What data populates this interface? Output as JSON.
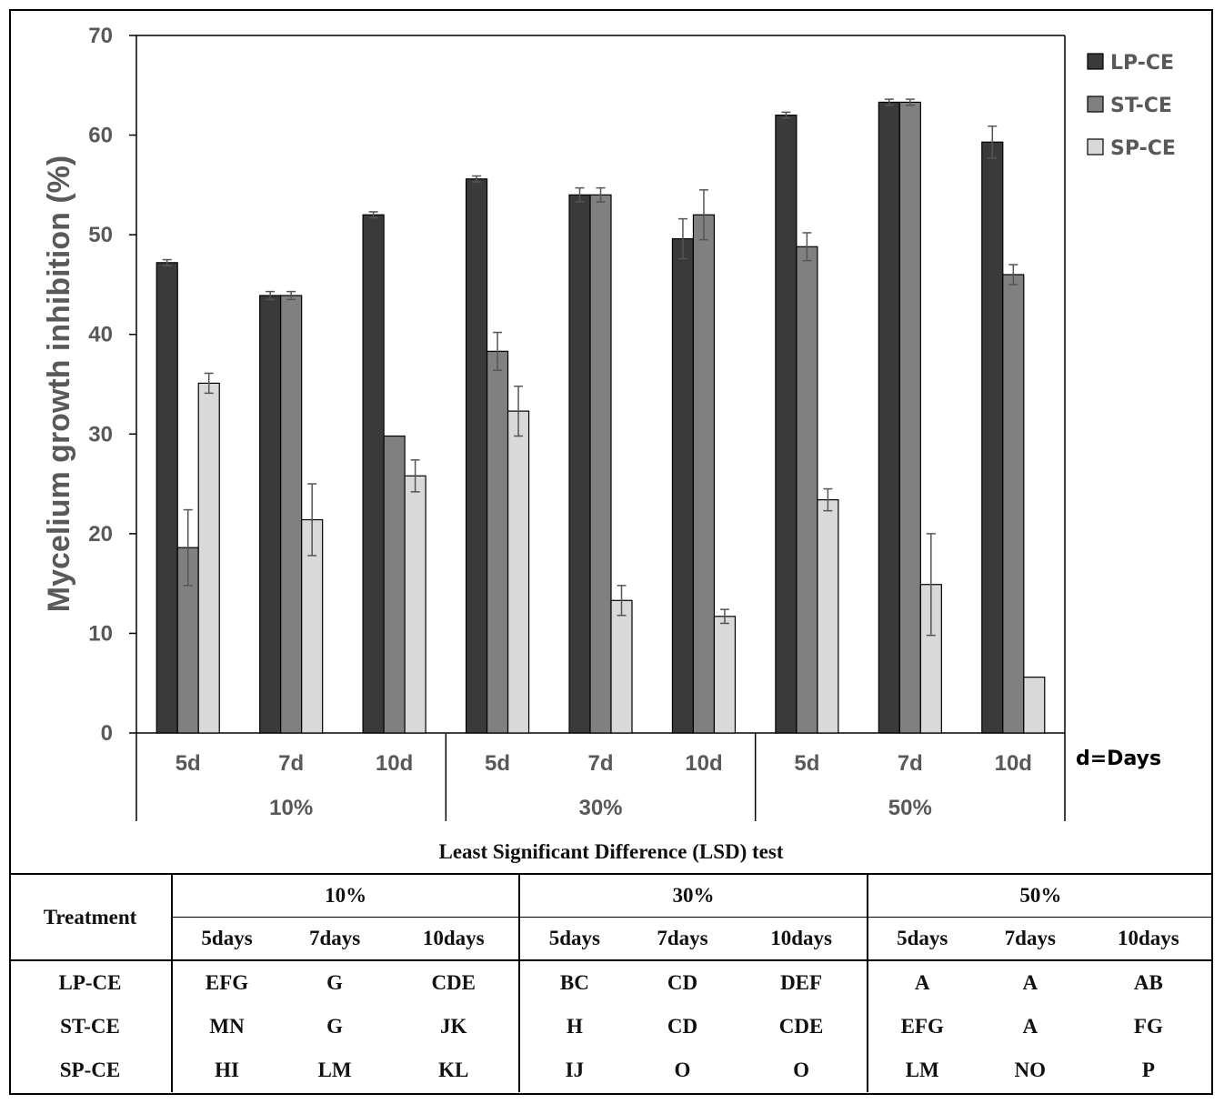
{
  "chart_data": {
    "type": "bar",
    "ylabel": "Mycelium growth inhibition (%)",
    "ylim": [
      0,
      70
    ],
    "yticks": [
      0,
      10,
      20,
      30,
      40,
      50,
      60,
      70
    ],
    "groups": [
      {
        "label": "10%",
        "categories": [
          "5d",
          "7d",
          "10d"
        ]
      },
      {
        "label": "30%",
        "categories": [
          "5d",
          "7d",
          "10d"
        ]
      },
      {
        "label": "50%",
        "categories": [
          "5d",
          "7d",
          "10d"
        ]
      }
    ],
    "categories": [
      "5d",
      "7d",
      "10d",
      "5d",
      "7d",
      "10d",
      "5d",
      "7d",
      "10d"
    ],
    "axis_note": "d=Days",
    "legend_position": "top-right",
    "series": [
      {
        "name": "LP-CE",
        "color": "#3a3a3a",
        "values": [
          47.2,
          43.9,
          52.0,
          55.6,
          54.0,
          49.6,
          62.0,
          63.3,
          59.3
        ],
        "errors": [
          0.3,
          0.4,
          0.3,
          0.3,
          0.7,
          2.0,
          0.3,
          0.3,
          1.6
        ]
      },
      {
        "name": "ST-CE",
        "color": "#808080",
        "values": [
          18.6,
          43.9,
          29.8,
          38.3,
          54.0,
          52.0,
          48.8,
          63.3,
          46.0
        ],
        "errors": [
          3.8,
          0.4,
          0.0,
          1.9,
          0.7,
          2.5,
          1.4,
          0.3,
          1.0
        ]
      },
      {
        "name": "SP-CE",
        "color": "#d9d9d9",
        "values": [
          35.1,
          21.4,
          25.8,
          32.3,
          13.3,
          11.7,
          23.4,
          14.9,
          5.6
        ],
        "errors": [
          1.0,
          3.6,
          1.6,
          2.5,
          1.5,
          0.7,
          1.1,
          5.1,
          0.0
        ]
      }
    ]
  },
  "lsd_table": {
    "title": "Least Significant Difference (LSD) test",
    "treatment_header": "Treatment",
    "concentrations": [
      "10%",
      "30%",
      "50%"
    ],
    "days": [
      "5days",
      "7days",
      "10days",
      "5days",
      "7days",
      "10days",
      "5days",
      "7days",
      "10days"
    ],
    "rows": [
      {
        "treatment": "LP-CE",
        "cells": [
          "EFG",
          "G",
          "CDE",
          "BC",
          "CD",
          "DEF",
          "A",
          "A",
          "AB"
        ]
      },
      {
        "treatment": "ST-CE",
        "cells": [
          "MN",
          "G",
          "JK",
          "H",
          "CD",
          "CDE",
          "EFG",
          "A",
          "FG"
        ]
      },
      {
        "treatment": "SP-CE",
        "cells": [
          "HI",
          "LM",
          "KL",
          "IJ",
          "O",
          "O",
          "LM",
          "NO",
          "P"
        ]
      }
    ]
  }
}
